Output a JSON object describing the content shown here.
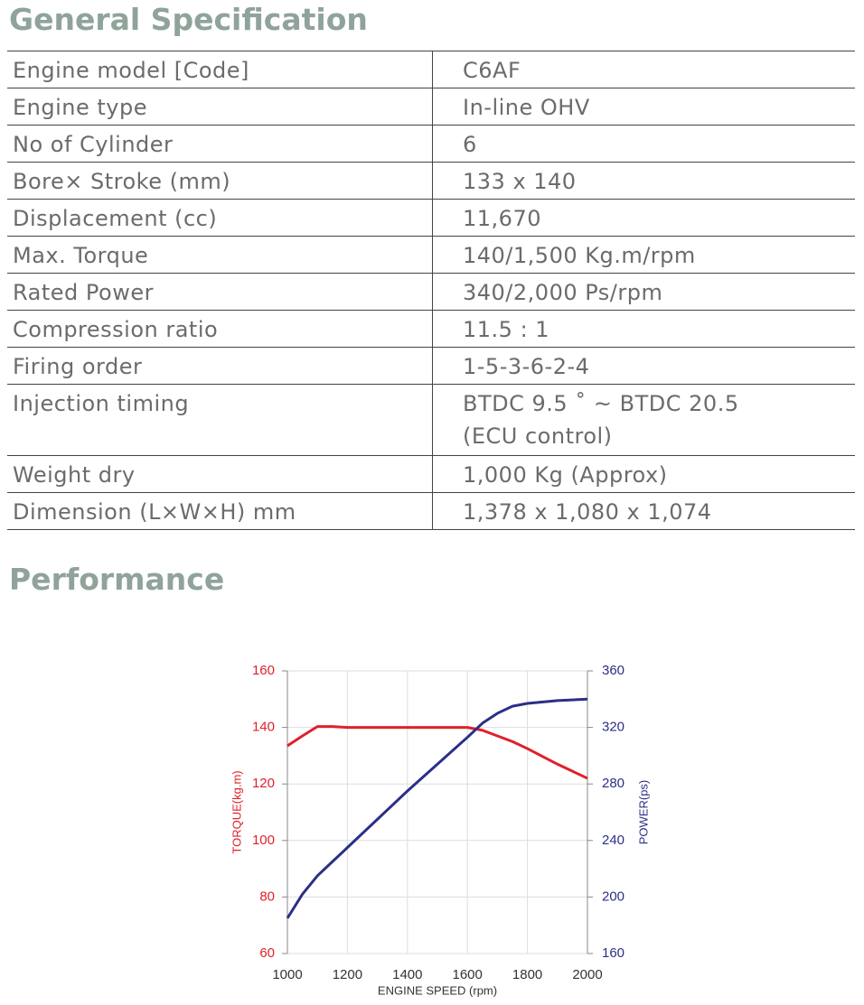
{
  "header": {
    "title": "General Specification"
  },
  "table": {
    "rows": [
      [
        "Engine model [Code]",
        "C6AF"
      ],
      [
        "Engine type",
        "In-line  OHV"
      ],
      [
        "No of Cylinder",
        "6"
      ],
      [
        "Bore× Stroke (mm)",
        "133 x 140"
      ],
      [
        "Displacement (cc)",
        "11,670"
      ],
      [
        "Max. Torque",
        "140/1,500 Kg.m/rpm"
      ],
      [
        "Rated Power",
        "340/2,000 Ps/rpm"
      ],
      [
        "Compression ratio",
        "11.5 : 1"
      ],
      [
        "Firing order",
        "1-5-3-6-2-4"
      ],
      [
        "Injection timing",
        [
          "BTDC 9.5 ˚ ~ BTDC 20.5",
          "(ECU control)"
        ]
      ],
      [
        " Weight dry",
        "1,000 Kg (Approx)"
      ],
      [
        "Dimension (L×W×H) mm",
        "1,378 x 1,080 x 1,074"
      ]
    ]
  },
  "performance": {
    "title": "Performance"
  },
  "chart_data": {
    "type": "line",
    "x_label": "ENGINE SPEED (rpm)",
    "y_label": "TORQUE(kg.m)",
    "y2_label": "POWER(ps)",
    "x": [
      1000,
      1050,
      1100,
      1150,
      1200,
      1400,
      1600,
      1650,
      1700,
      1750,
      1800,
      1900,
      2000
    ],
    "series": [
      {
        "name": "Torque",
        "color": "#e0202a",
        "axis": "y",
        "values": [
          133.5,
          137,
          140.3,
          140.3,
          140,
          140,
          140,
          139,
          137,
          135,
          132.5,
          127,
          122
        ]
      },
      {
        "name": "Power",
        "color": "#2b2f86",
        "axis": "y2",
        "values": [
          185,
          202,
          215,
          225,
          235,
          275,
          313,
          323,
          330,
          335,
          337,
          339,
          340
        ]
      }
    ],
    "xlim": [
      1000,
      2000
    ],
    "xticks": [
      1000,
      1200,
      1400,
      1600,
      1800,
      2000
    ],
    "ylim": [
      60,
      160
    ],
    "yticks": [
      60,
      80,
      100,
      120,
      140,
      160
    ],
    "y2lim": [
      160,
      360
    ],
    "y2ticks": [
      160,
      200,
      240,
      280,
      320,
      360
    ],
    "grid": true
  }
}
